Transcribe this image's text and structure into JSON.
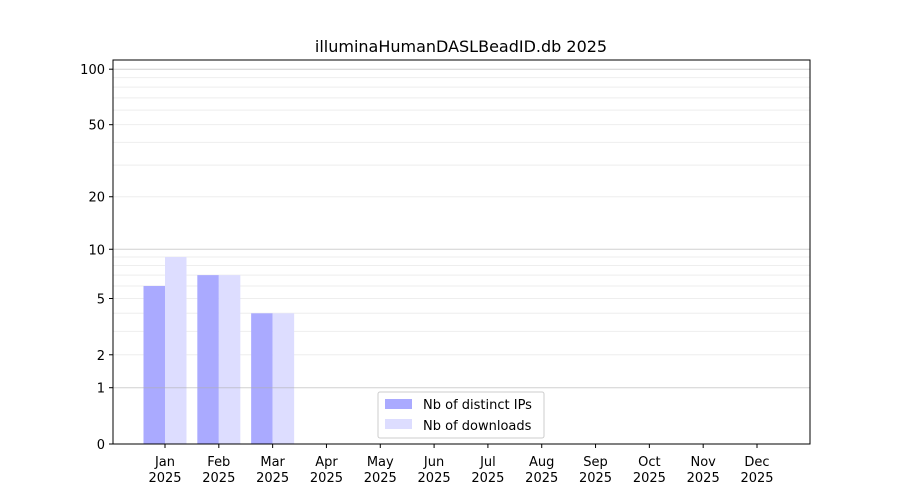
{
  "chart_data": {
    "type": "bar",
    "title": "illuminaHumanDASLBeadID.db 2025",
    "xlabel": "",
    "ylabel": "",
    "yscale": "symlog",
    "ylim": [
      0,
      110
    ],
    "yticks": [
      0,
      1,
      2,
      5,
      10,
      20,
      50,
      100
    ],
    "categories": [
      "Jan\n2025",
      "Feb\n2025",
      "Mar\n2025",
      "Apr\n2025",
      "May\n2025",
      "Jun\n2025",
      "Jul\n2025",
      "Aug\n2025",
      "Sep\n2025",
      "Oct\n2025",
      "Nov\n2025",
      "Dec\n2025"
    ],
    "series": [
      {
        "name": "Nb of distinct IPs",
        "color": "#aaaaff",
        "values": [
          6,
          7,
          4,
          0,
          0,
          0,
          0,
          0,
          0,
          0,
          0,
          0
        ]
      },
      {
        "name": "Nb of downloads",
        "color": "#ddddff",
        "values": [
          9,
          7,
          4,
          0,
          0,
          0,
          0,
          0,
          0,
          0,
          0,
          0
        ]
      }
    ],
    "grid": true,
    "legend": "bottom-center"
  }
}
